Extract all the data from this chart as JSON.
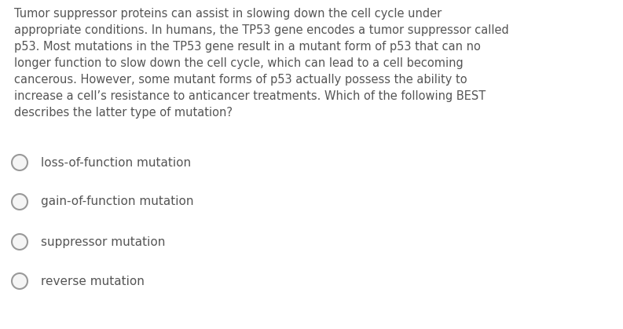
{
  "background_color": "#ffffff",
  "text_color": "#555555",
  "question": "Tumor suppressor proteins can assist in slowing down the cell cycle under\nappropriate conditions. In humans, the TP53 gene encodes a tumor suppressor called\np53. Most mutations in the TP53 gene result in a mutant form of p53 that can no\nlonger function to slow down the cell cycle, which can lead to a cell becoming\ncancerous. However, some mutant forms of p53 actually possess the ability to\nincrease a cell’s resistance to anticancer treatments. Which of the following BEST\ndescribes the latter type of mutation?",
  "options": [
    "loss-of-function mutation",
    "gain-of-function mutation",
    "suppressor mutation",
    "reverse mutation"
  ],
  "question_fontsize": 10.5,
  "option_fontsize": 11.0,
  "circle_color": "#bbbbbb",
  "circle_edgecolor": "#999999",
  "figsize": [
    7.93,
    4.19
  ],
  "dpi": 100
}
